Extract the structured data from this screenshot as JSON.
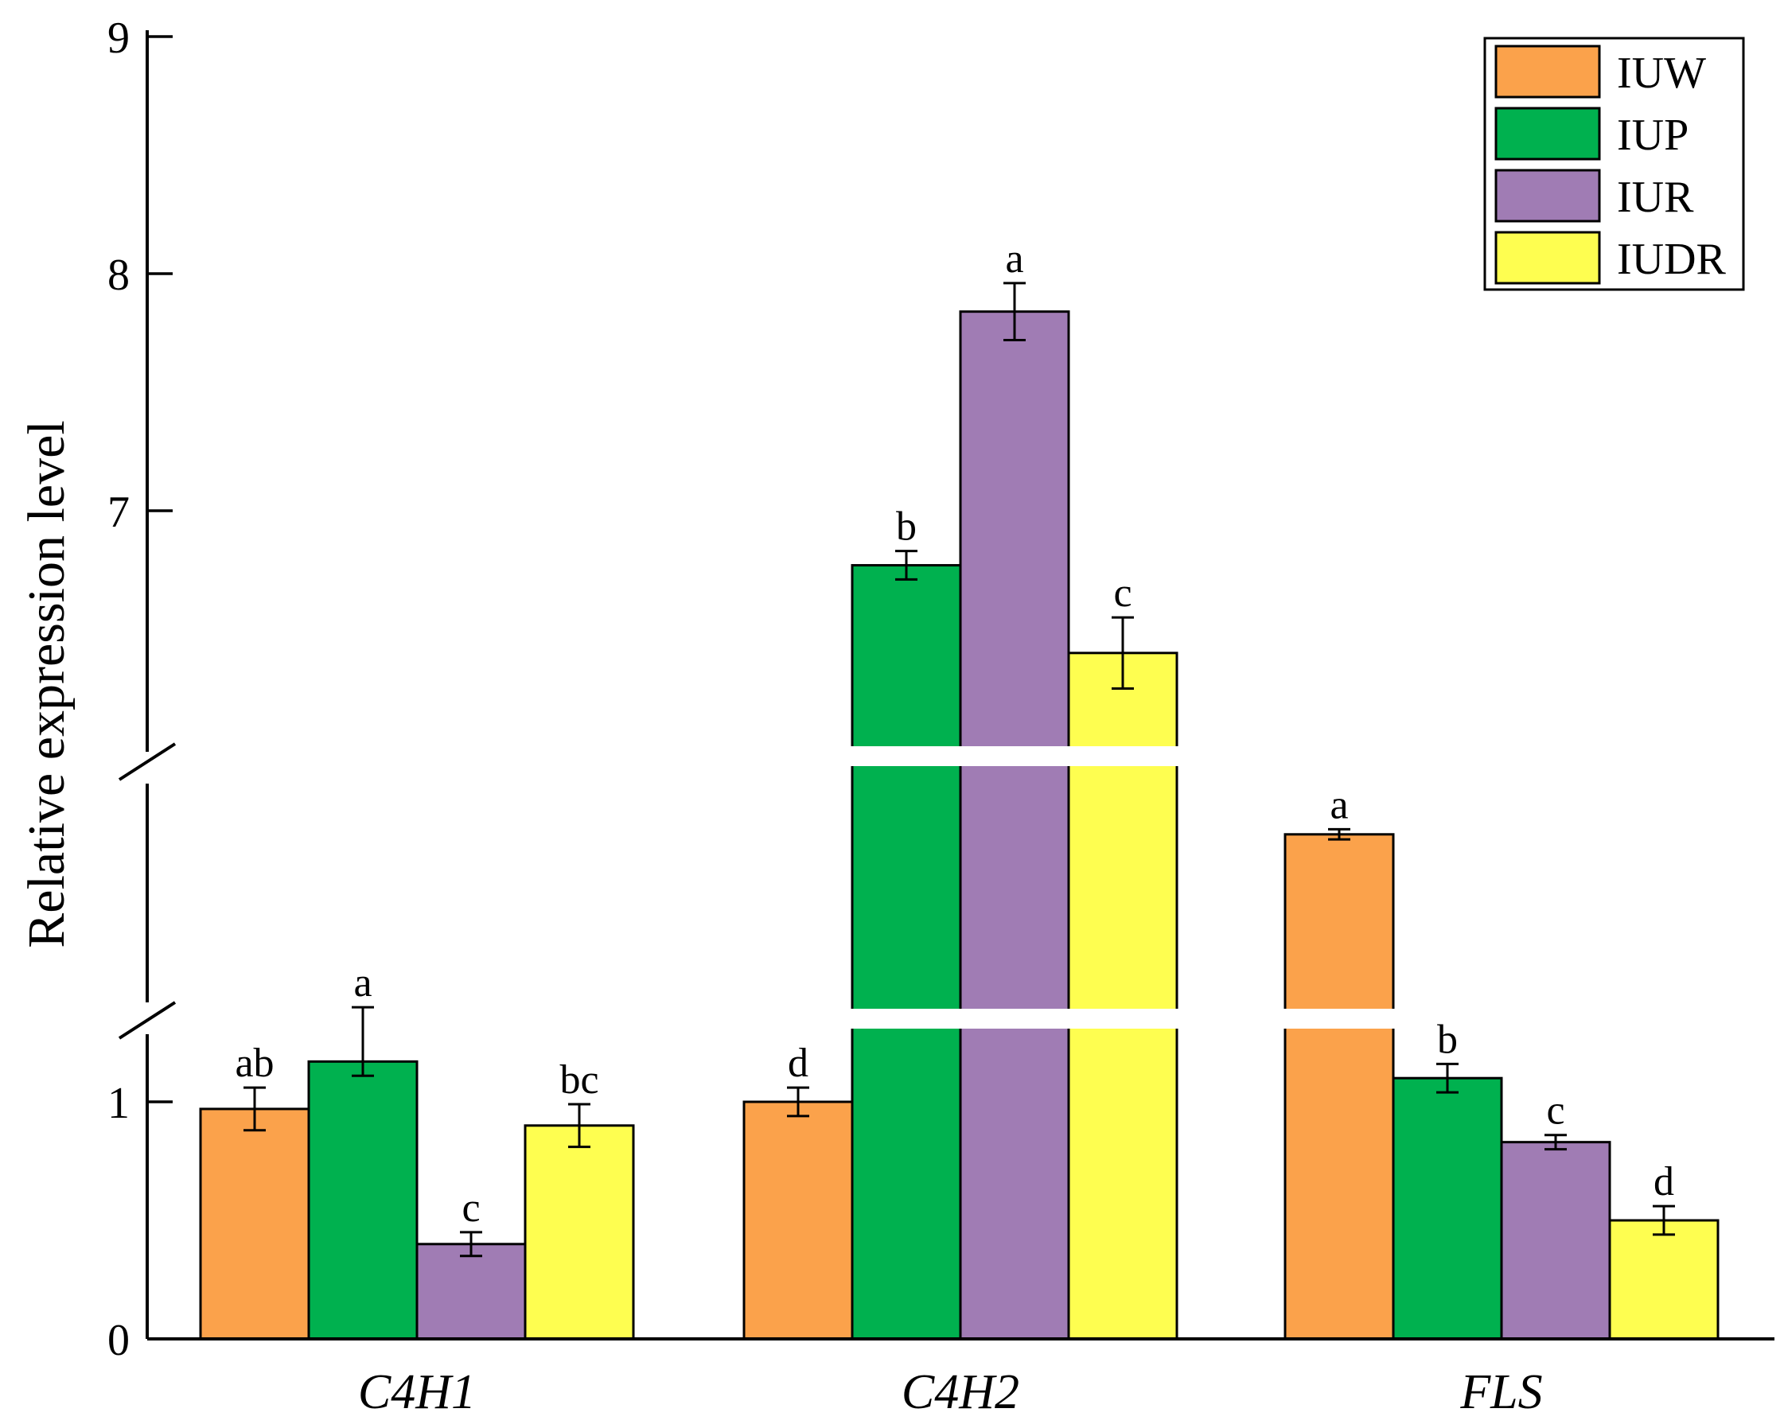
{
  "chart_data": {
    "type": "bar",
    "title": "",
    "xlabel": "",
    "ylabel": "Relative expression level",
    "categories": [
      "C4H1",
      "C4H2",
      "FLS"
    ],
    "y_axis": {
      "segments": [
        {
          "range": [
            0,
            1.2
          ],
          "ticks": [
            0,
            1
          ]
        },
        {
          "range": [
            6,
            9
          ],
          "ticks": [
            7,
            8,
            9
          ]
        }
      ],
      "broken": true
    },
    "series": [
      {
        "name": "IUW",
        "color": "#fba24b",
        "values": [
          0.97,
          1.0,
          4.65
        ],
        "errors": [
          0.09,
          0.06,
          0.1
        ],
        "labels": [
          "ab",
          "d",
          "a"
        ]
      },
      {
        "name": "IUP",
        "color": "#00b14f",
        "values": [
          1.17,
          6.77,
          1.1
        ],
        "errors": [
          0.06,
          0.06,
          0.06
        ],
        "labels": [
          "a",
          "b",
          "b"
        ]
      },
      {
        "name": "IUR",
        "color": "#a07cb4",
        "values": [
          0.4,
          7.84,
          0.83
        ],
        "errors": [
          0.05,
          0.12,
          0.03
        ],
        "labels": [
          "c",
          "a",
          "c"
        ]
      },
      {
        "name": "IUDR",
        "color": "#fefe50",
        "values": [
          0.9,
          6.4,
          0.5
        ],
        "errors": [
          0.09,
          0.15,
          0.06
        ],
        "labels": [
          "bc",
          "c",
          "d"
        ]
      }
    ],
    "legend": "top-right",
    "grid": false
  }
}
